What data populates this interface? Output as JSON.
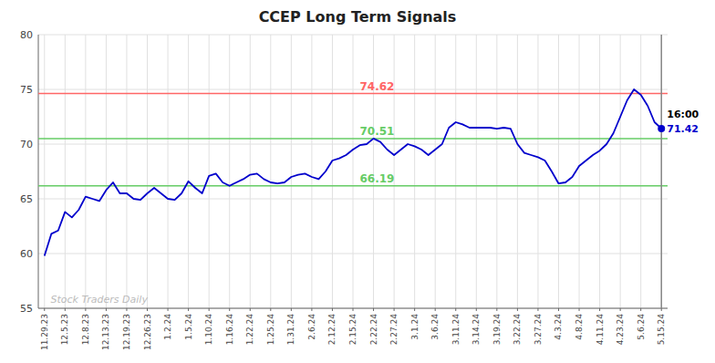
{
  "chart_data": {
    "type": "line",
    "title": "CCEP Long Term Signals",
    "categories": [
      "11.29.23",
      null,
      null,
      "12.5.23",
      null,
      null,
      "12.8.23",
      null,
      null,
      "12.13.23",
      null,
      null,
      "12.19.23",
      null,
      null,
      "12.26.23",
      null,
      null,
      "1.2.24",
      null,
      null,
      "1.5.24",
      null,
      null,
      "1.10.24",
      null,
      null,
      "1.16.24",
      null,
      null,
      "1.22.24",
      null,
      null,
      "1.25.24",
      null,
      null,
      "1.31.24",
      null,
      null,
      "2.6.24",
      null,
      null,
      "2.12.24",
      null,
      null,
      "2.15.24",
      null,
      null,
      "2.22.24",
      null,
      null,
      "2.27.24",
      null,
      null,
      "3.1.24",
      null,
      null,
      "3.6.24",
      null,
      null,
      "3.11.24",
      null,
      null,
      "3.14.24",
      null,
      null,
      "3.19.24",
      null,
      null,
      "3.22.24",
      null,
      null,
      "3.27.24",
      null,
      null,
      "4.3.24",
      null,
      null,
      "4.8.24",
      null,
      null,
      "4.11.24",
      null,
      null,
      "4.23.24",
      null,
      null,
      "5.6.24",
      null,
      null,
      "5.15.24"
    ],
    "values": [
      59.8,
      61.8,
      62.1,
      63.8,
      63.3,
      64.0,
      65.2,
      65.0,
      64.8,
      65.8,
      66.5,
      65.5,
      65.5,
      65.0,
      64.9,
      65.5,
      66.0,
      65.5,
      65.0,
      64.9,
      65.5,
      66.6,
      66.0,
      65.5,
      67.1,
      67.3,
      66.5,
      66.19,
      66.5,
      66.8,
      67.2,
      67.3,
      66.8,
      66.5,
      66.4,
      66.5,
      67.0,
      67.2,
      67.3,
      67.0,
      66.8,
      67.5,
      68.5,
      68.7,
      69.0,
      69.5,
      69.9,
      70.0,
      70.51,
      70.2,
      69.5,
      69.0,
      69.5,
      70.0,
      69.8,
      69.5,
      69.0,
      69.5,
      70.0,
      71.5,
      72.0,
      71.8,
      71.5,
      71.5,
      71.5,
      71.5,
      71.4,
      71.5,
      71.4,
      70.0,
      69.2,
      69.0,
      68.8,
      68.5,
      67.5,
      66.4,
      66.5,
      67.0,
      68.0,
      68.5,
      69.0,
      69.4,
      70.0,
      71.0,
      72.5,
      74.0,
      75.0,
      74.5,
      73.5,
      72.0,
      71.42
    ],
    "color": "#0000cc",
    "ylim": [
      55,
      80
    ],
    "yticks": [
      55,
      60,
      65,
      70,
      75,
      80
    ],
    "grid": true,
    "reference_lines": [
      {
        "value": 74.62,
        "label": "74.62",
        "color": "#ff6666"
      },
      {
        "value": 70.51,
        "label": "70.51",
        "color": "#66cc66"
      },
      {
        "value": 66.19,
        "label": "66.19",
        "color": "#66cc66"
      }
    ],
    "end_time": "16:00",
    "end_label": "71.42",
    "watermark": "Stock Traders Daily"
  }
}
